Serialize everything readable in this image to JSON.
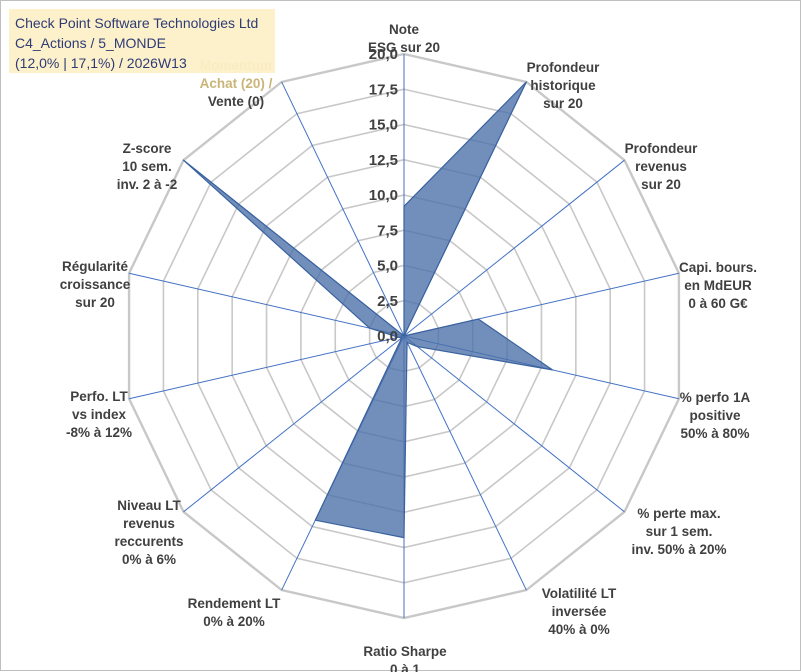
{
  "chart_data": {
    "type": "radar",
    "title_lines": [
      "Check Point Software Technologies Ltd",
      "C4_Actions / 5_MONDE",
      "(12,0% | 17,1%) / 2026W13"
    ],
    "rmax": 20,
    "ticks": [
      "0,0",
      "2,5",
      "5,0",
      "7,5",
      "10,0",
      "12,5",
      "15,0",
      "17,5",
      "20,0"
    ],
    "axes": [
      {
        "label_lines": [
          "Note",
          "ESG sur 20"
        ],
        "value": 9.2
      },
      {
        "label_lines": [
          "Profondeur",
          "historique",
          "sur 20"
        ],
        "value": 20
      },
      {
        "label_lines": [
          "Profondeur",
          "revenus",
          "sur 20"
        ],
        "value": 0
      },
      {
        "label_lines": [
          "Capi. bours.",
          "en MdEUR",
          "0 à 60 G€"
        ],
        "value": 5.4
      },
      {
        "label_lines": [
          "% perfo 1A",
          "positive",
          "50% à 80%"
        ],
        "value": 10.8
      },
      {
        "label_lines": [
          "% perte max.",
          "sur 1 sem.",
          "inv. 50% à 20%"
        ],
        "value": 1.2
      },
      {
        "label_lines": [
          "Volatilité LT",
          "inversée",
          "40% à 0%"
        ],
        "value": 0.5
      },
      {
        "label_lines": [
          "Ratio Sharpe",
          "0 à 1"
        ],
        "value": 14.3
      },
      {
        "label_lines": [
          "Rendement LT",
          "0% à 20%"
        ],
        "value": 14.5
      },
      {
        "label_lines": [
          "Niveau LT",
          "revenus",
          "reccurents",
          "0% à 6%"
        ],
        "value": 0.2
      },
      {
        "label_lines": [
          "Perfo. LT",
          "vs index",
          "-8% à 12%"
        ],
        "value": 0.4
      },
      {
        "label_lines": [
          "Régularité",
          "croissance",
          "sur 20"
        ],
        "value": 2.5
      },
      {
        "label_lines": [
          "Z-score",
          "10 sem.",
          "inv. 2 à -2"
        ],
        "value": 20
      },
      {
        "label_lines": [
          "Momentum",
          "Achat (20) /",
          "Vente (0)"
        ],
        "value": 0
      }
    ],
    "colors": {
      "fill": "#4a70a8",
      "stroke": "#3a62a0",
      "spoke": "#4472c4",
      "grid": "#c8c8c8",
      "momentum_faded": "#c9b577",
      "label": "#404040"
    }
  }
}
